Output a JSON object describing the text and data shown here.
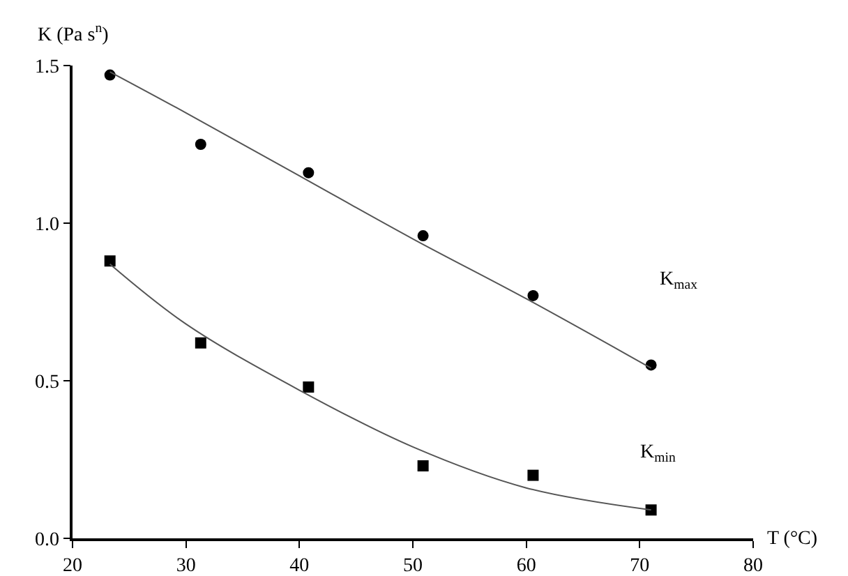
{
  "chart_data": {
    "type": "scatter",
    "xlabel": "T (°C)",
    "ylabel": "K (Pa s$^{n}$)",
    "xlim": [
      20,
      80
    ],
    "xticks": [
      20,
      30,
      40,
      50,
      60,
      70,
      80
    ],
    "ylim": [
      0,
      1.5
    ],
    "yticks": [
      {
        "value": 0,
        "label": "0.0"
      },
      {
        "value": 0.5,
        "label": "0.5"
      },
      {
        "value": 1,
        "label": "1.0"
      },
      {
        "value": 1.5,
        "label": "1.5"
      }
    ],
    "grid": false,
    "series": [
      {
        "name": "K$_{max}$",
        "marker": "circle",
        "color": "#000000",
        "x": [
          23.3,
          31.3,
          40.8,
          50.9,
          60.6,
          71.0
        ],
        "values": [
          1.47,
          1.25,
          1.16,
          0.96,
          0.77,
          0.55
        ]
      },
      {
        "name": "K$_{min}$",
        "marker": "square",
        "color": "#000000",
        "x": [
          23.3,
          31.3,
          40.8,
          50.9,
          60.6,
          71.0
        ],
        "values": [
          0.88,
          0.62,
          0.48,
          0.23,
          0.2,
          0.09
        ]
      },
      {
        "type": "line",
        "marker": "none",
        "line_style": "solid",
        "color": "#555555",
        "x": [
          23.3,
          30,
          40,
          50,
          60,
          71.0
        ],
        "values": [
          1.48,
          1.35,
          1.15,
          0.95,
          0.76,
          0.54
        ]
      },
      {
        "type": "line",
        "marker": "none",
        "line_style": "solid",
        "color": "#555555",
        "x": [
          23.3,
          30,
          40,
          50,
          60,
          71.0
        ],
        "values": [
          0.87,
          0.68,
          0.47,
          0.29,
          0.16,
          0.09
        ]
      }
    ]
  }
}
